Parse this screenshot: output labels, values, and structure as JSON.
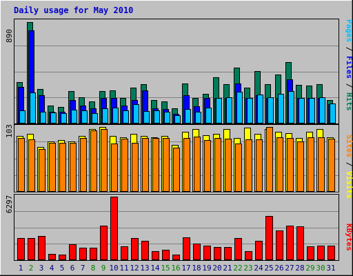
{
  "chart_data": [
    {
      "type": "bar",
      "title": "Daily usage for May 2010",
      "panel": "top",
      "ymax_label": "890",
      "ylim": [
        0,
        890
      ],
      "legend_labels": [
        "Pages",
        "Files",
        "Hits"
      ],
      "legend_separator": " / ",
      "categories": [
        "1",
        "2",
        "3",
        "4",
        "5",
        "6",
        "7",
        "8",
        "9",
        "10",
        "11",
        "12",
        "13",
        "14",
        "15",
        "16",
        "17",
        "18",
        "19",
        "20",
        "21",
        "22",
        "23",
        "24",
        "25",
        "26",
        "27",
        "28",
        "29",
        "30",
        "31"
      ],
      "weekend_days": [
        "2",
        "8",
        "9",
        "15",
        "16",
        "22",
        "23",
        "29",
        "30"
      ],
      "series": [
        {
          "name": "Hits",
          "values": [
            360,
            885,
            300,
            155,
            145,
            285,
            230,
            195,
            285,
            290,
            225,
            315,
            345,
            205,
            195,
            135,
            350,
            220,
            260,
            400,
            340,
            485,
            310,
            455,
            345,
            425,
            535,
            335,
            330,
            345,
            205
          ]
        },
        {
          "name": "Files",
          "values": [
            320,
            810,
            245,
            105,
            105,
            205,
            155,
            135,
            225,
            225,
            155,
            205,
            290,
            130,
            125,
            85,
            245,
            150,
            225,
            220,
            225,
            350,
            225,
            245,
            225,
            225,
            385,
            225,
            225,
            225,
            170
          ]
        },
        {
          "name": "Pages",
          "values": [
            115,
            270,
            100,
            95,
            90,
            120,
            115,
            90,
            135,
            140,
            115,
            170,
            110,
            115,
            100,
            70,
            125,
            105,
            140,
            220,
            230,
            275,
            225,
            255,
            230,
            260,
            285,
            220,
            225,
            230,
            175
          ]
        }
      ]
    },
    {
      "type": "bar",
      "panel": "middle",
      "ymax_label": "103",
      "ylim": [
        0,
        103
      ],
      "legend_labels": [
        "Sites",
        "Visits"
      ],
      "legend_separator": " / ",
      "categories": [
        "1",
        "2",
        "3",
        "4",
        "5",
        "6",
        "7",
        "8",
        "9",
        "10",
        "11",
        "12",
        "13",
        "14",
        "15",
        "16",
        "17",
        "18",
        "19",
        "20",
        "21",
        "22",
        "23",
        "24",
        "25",
        "26",
        "27",
        "28",
        "29",
        "30",
        "31"
      ],
      "series": [
        {
          "name": "Visits",
          "values": [
            89,
            92,
            71,
            80,
            82,
            80,
            89,
            100,
            103,
            89,
            87,
            92,
            89,
            87,
            89,
            75,
            95,
            100,
            90,
            92,
            100,
            85,
            102,
            92,
            100,
            95,
            93,
            85,
            95,
            100,
            87
          ]
        },
        {
          "name": "Sites",
          "values": [
            85,
            83,
            68,
            78,
            78,
            78,
            86,
            97,
            100,
            77,
            84,
            78,
            85,
            85,
            86,
            70,
            85,
            88,
            82,
            85,
            84,
            77,
            83,
            83,
            103,
            87,
            85,
            80,
            87,
            87,
            84
          ]
        }
      ]
    },
    {
      "type": "bar",
      "panel": "bottom",
      "ymax_label": "6297",
      "ylim": [
        0,
        6297
      ],
      "legend_labels": [
        "KBytes"
      ],
      "categories": [
        "1",
        "2",
        "3",
        "4",
        "5",
        "6",
        "7",
        "8",
        "9",
        "10",
        "11",
        "12",
        "13",
        "14",
        "15",
        "16",
        "17",
        "18",
        "19",
        "20",
        "21",
        "22",
        "23",
        "24",
        "25",
        "26",
        "27",
        "28",
        "29",
        "30",
        "31"
      ],
      "series": [
        {
          "name": "KBytes",
          "values": [
            2160,
            2160,
            2390,
            620,
            580,
            1580,
            1230,
            1230,
            3440,
            6297,
            1370,
            2160,
            1900,
            880,
            1010,
            580,
            2290,
            1630,
            1450,
            1320,
            1320,
            2160,
            880,
            1900,
            4380,
            2950,
            3440,
            3370,
            1370,
            1450,
            1450
          ]
        }
      ]
    }
  ],
  "colors": {
    "background": "#c0c0c0",
    "title": "#0000cc",
    "hits": "#007c5a",
    "files": "#0000ff",
    "pages": "#00c0ff",
    "visits": "#ffff00",
    "sites": "#ff8000",
    "kbytes": "#ff0000",
    "weekday": "#000080",
    "weekend": "#008000"
  }
}
